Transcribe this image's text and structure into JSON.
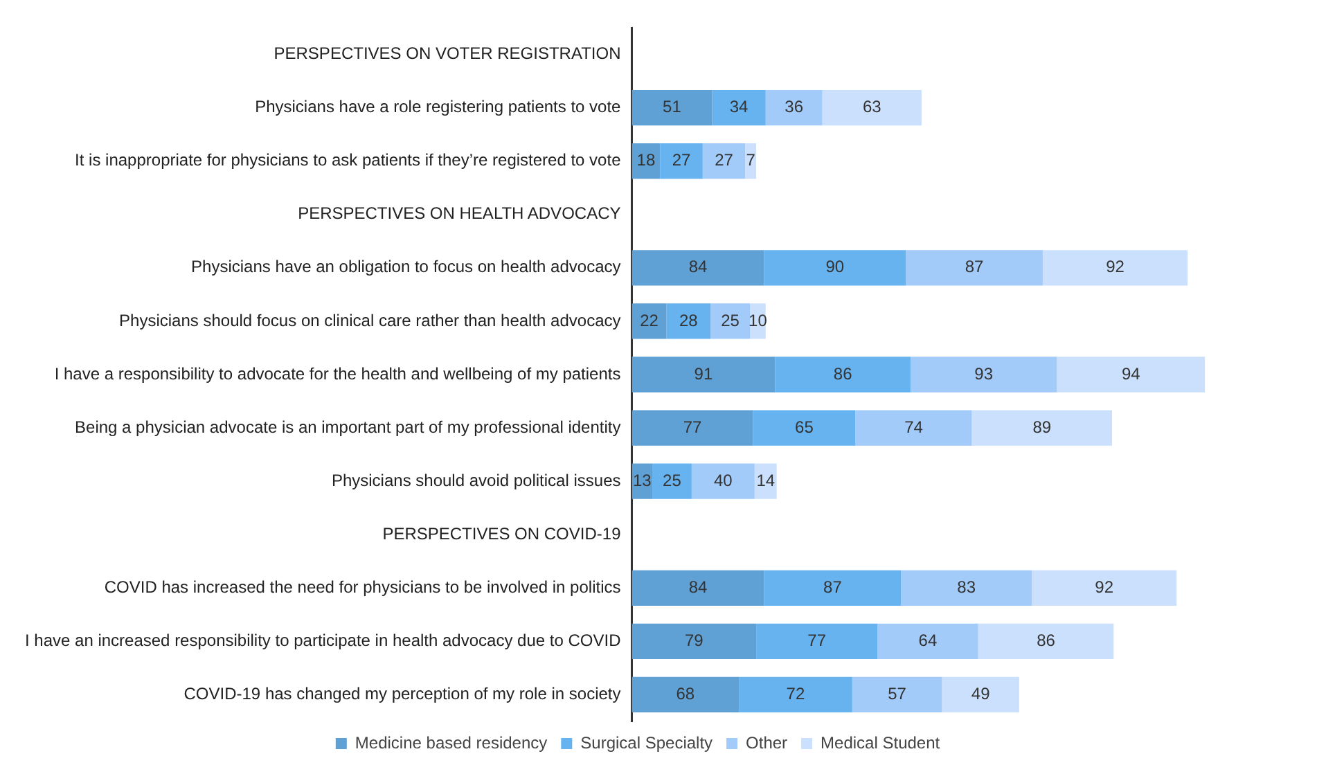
{
  "chart_data": {
    "type": "bar",
    "orientation": "horizontal",
    "stacked": true,
    "data_labels": true,
    "legend": "bottom",
    "grid": false,
    "categories": [
      "PERSPECTIVES ON VOTER REGISTRATION",
      "Physicians have a role registering patients to vote",
      "It is inappropriate for physicians to ask patients if they’re registered to vote",
      "PERSPECTIVES ON HEALTH ADVOCACY",
      "Physicians have an obligation to focus on health advocacy",
      "Physicians should focus on clinical care rather than health advocacy",
      "I have a responsibility to advocate for the health and wellbeing of my patients",
      "Being a physician advocate is an important part of my professional identity",
      "Physicians should avoid political issues",
      "PERSPECTIVES ON COVID-19",
      "COVID has increased the need for physicians to be involved in politics",
      "I have an increased responsibility to participate in health advocacy due to COVID",
      "COVID-19 has changed my perception of my role in society"
    ],
    "series": [
      {
        "name": "Medicine based residency",
        "color": "#5fa0d5",
        "values": [
          null,
          51,
          18,
          null,
          84,
          22,
          91,
          77,
          13,
          null,
          84,
          79,
          68
        ]
      },
      {
        "name": "Surgical Specialty",
        "color": "#66b3f0",
        "values": [
          null,
          34,
          27,
          null,
          90,
          28,
          86,
          65,
          25,
          null,
          87,
          77,
          72
        ]
      },
      {
        "name": "Other",
        "color": "#a3cbfa",
        "values": [
          null,
          36,
          27,
          null,
          87,
          25,
          93,
          74,
          40,
          null,
          83,
          64,
          57
        ]
      },
      {
        "name": "Medical Student",
        "color": "#cbe0fd",
        "values": [
          null,
          63,
          7,
          null,
          92,
          10,
          94,
          89,
          14,
          null,
          92,
          86,
          49
        ]
      }
    ]
  }
}
